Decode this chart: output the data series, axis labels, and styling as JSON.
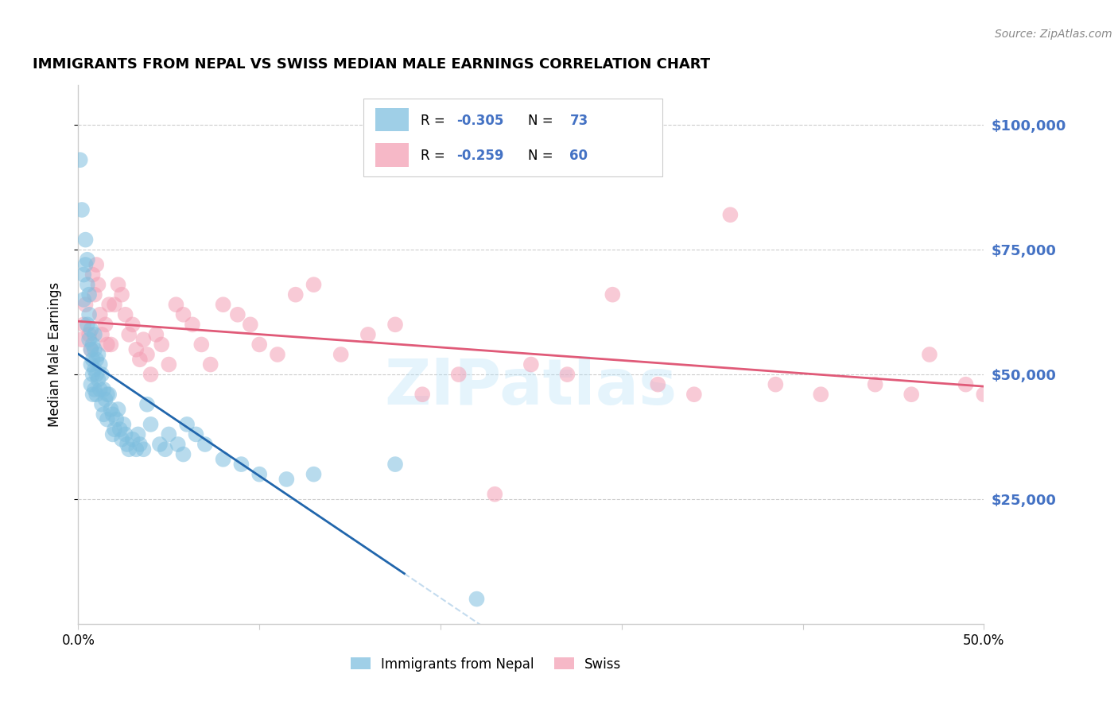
{
  "title": "IMMIGRANTS FROM NEPAL VS SWISS MEDIAN MALE EARNINGS CORRELATION CHART",
  "source": "Source: ZipAtlas.com",
  "ylabel": "Median Male Earnings",
  "ytick_labels": [
    "$25,000",
    "$50,000",
    "$75,000",
    "$100,000"
  ],
  "ytick_values": [
    25000,
    50000,
    75000,
    100000
  ],
  "ymin": 0,
  "ymax": 108000,
  "xmin": 0.0,
  "xmax": 0.5,
  "scatter_color_nepal": "#7fbfdf",
  "scatter_color_swiss": "#f4a0b5",
  "line_color_nepal": "#2166ac",
  "line_color_swiss": "#e05a78",
  "line_color_nepal_dashed": "#aacce8",
  "bg_color": "#ffffff",
  "grid_color": "#cccccc",
  "ytick_color": "#4472c4",
  "label1": "Immigrants from Nepal",
  "label2": "Swiss",
  "watermark": "ZIPatlas",
  "nepal_points_x": [
    0.001,
    0.002,
    0.003,
    0.003,
    0.004,
    0.004,
    0.005,
    0.005,
    0.005,
    0.006,
    0.006,
    0.006,
    0.007,
    0.007,
    0.007,
    0.007,
    0.008,
    0.008,
    0.008,
    0.008,
    0.009,
    0.009,
    0.009,
    0.009,
    0.01,
    0.01,
    0.01,
    0.011,
    0.011,
    0.012,
    0.012,
    0.013,
    0.013,
    0.014,
    0.014,
    0.015,
    0.016,
    0.016,
    0.017,
    0.018,
    0.019,
    0.019,
    0.02,
    0.021,
    0.022,
    0.023,
    0.024,
    0.025,
    0.026,
    0.027,
    0.028,
    0.03,
    0.032,
    0.033,
    0.034,
    0.036,
    0.038,
    0.04,
    0.045,
    0.048,
    0.05,
    0.055,
    0.058,
    0.06,
    0.065,
    0.07,
    0.08,
    0.09,
    0.1,
    0.115,
    0.13,
    0.175,
    0.22
  ],
  "nepal_points_y": [
    93000,
    83000,
    70000,
    65000,
    77000,
    72000,
    68000,
    60000,
    73000,
    57000,
    62000,
    66000,
    59000,
    55000,
    52000,
    48000,
    56000,
    53000,
    50000,
    46000,
    58000,
    55000,
    51000,
    47000,
    53000,
    50000,
    46000,
    54000,
    49000,
    52000,
    47000,
    50000,
    44000,
    47000,
    42000,
    45000,
    46000,
    41000,
    46000,
    43000,
    42000,
    38000,
    39000,
    41000,
    43000,
    39000,
    37000,
    40000,
    38000,
    36000,
    35000,
    37000,
    35000,
    38000,
    36000,
    35000,
    44000,
    40000,
    36000,
    35000,
    38000,
    36000,
    34000,
    40000,
    38000,
    36000,
    33000,
    32000,
    30000,
    29000,
    30000,
    32000,
    5000
  ],
  "swiss_points_x": [
    0.002,
    0.003,
    0.004,
    0.006,
    0.007,
    0.008,
    0.009,
    0.01,
    0.011,
    0.012,
    0.013,
    0.015,
    0.016,
    0.017,
    0.018,
    0.02,
    0.022,
    0.024,
    0.026,
    0.028,
    0.03,
    0.032,
    0.034,
    0.036,
    0.038,
    0.04,
    0.043,
    0.046,
    0.05,
    0.054,
    0.058,
    0.063,
    0.068,
    0.073,
    0.08,
    0.088,
    0.095,
    0.1,
    0.11,
    0.12,
    0.13,
    0.145,
    0.16,
    0.175,
    0.19,
    0.21,
    0.23,
    0.25,
    0.27,
    0.295,
    0.32,
    0.34,
    0.36,
    0.385,
    0.41,
    0.44,
    0.46,
    0.47,
    0.49,
    0.5
  ],
  "swiss_points_y": [
    57000,
    60000,
    64000,
    58000,
    55000,
    70000,
    66000,
    72000,
    68000,
    62000,
    58000,
    60000,
    56000,
    64000,
    56000,
    64000,
    68000,
    66000,
    62000,
    58000,
    60000,
    55000,
    53000,
    57000,
    54000,
    50000,
    58000,
    56000,
    52000,
    64000,
    62000,
    60000,
    56000,
    52000,
    64000,
    62000,
    60000,
    56000,
    54000,
    66000,
    68000,
    54000,
    58000,
    60000,
    46000,
    50000,
    26000,
    52000,
    50000,
    66000,
    48000,
    46000,
    82000,
    48000,
    46000,
    48000,
    46000,
    54000,
    48000,
    46000
  ]
}
